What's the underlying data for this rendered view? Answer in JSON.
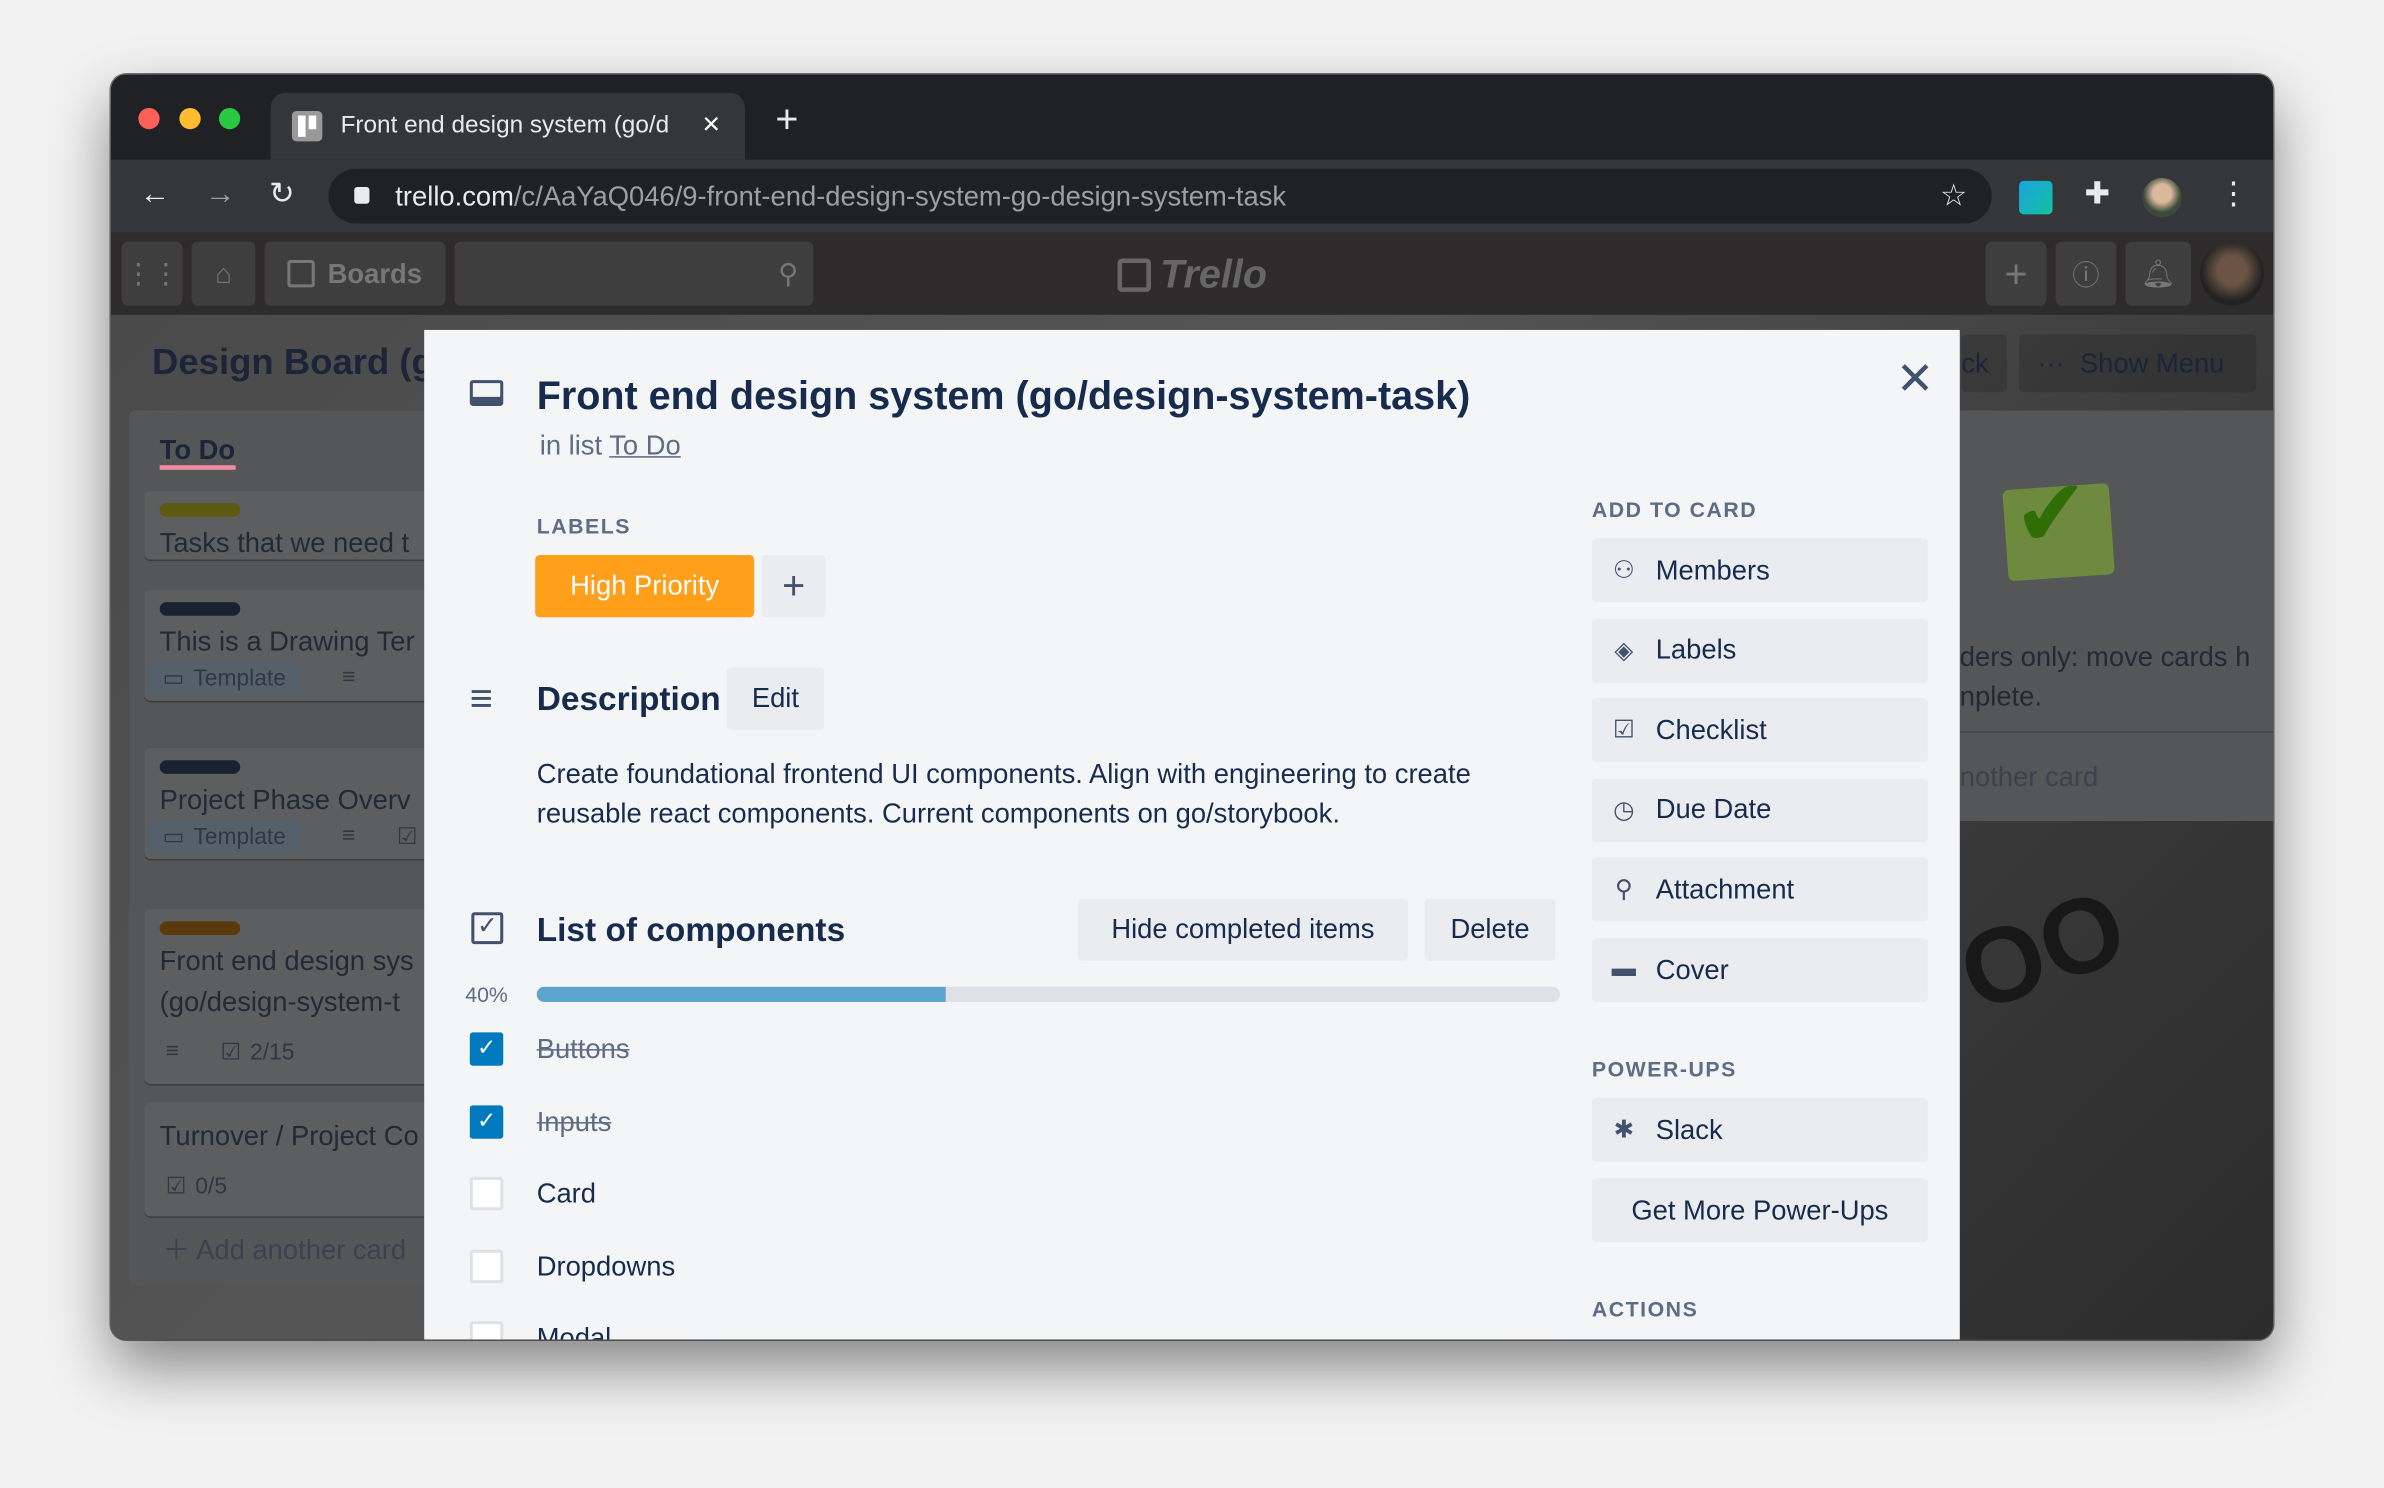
{
  "browser": {
    "tab_title": "Front end design system (go/d",
    "url_domain": "trello.com",
    "url_path": "/c/AaYaQ046/9-front-end-design-system-go-design-system-task",
    "traffic_lights": [
      "#fe5f57",
      "#febc2e",
      "#28c840"
    ]
  },
  "trello_header": {
    "boards_label": "Boards",
    "logo_text": "Trello"
  },
  "board": {
    "title": "Design Board (g",
    "right_button_partial": "ck",
    "show_menu_label": "Show Menu",
    "list": {
      "title": "To Do",
      "cards": [
        {
          "label_color": "#5c5a10",
          "title": "Tasks that we need t"
        },
        {
          "label_color": "#1a2232",
          "title": "This is a Drawing Ter",
          "badge": "Template"
        },
        {
          "label_color": "#1a2232",
          "title": "Project Phase Overv",
          "badge": "Template"
        },
        {
          "label_color": "#5a3a0c",
          "title": "Front end design sys",
          "title2": "(go/design-system-t",
          "checklist": "2/15"
        },
        {
          "title": "Turnover / Project Co",
          "checklist": "0/5"
        }
      ],
      "add_card": "Add another card"
    },
    "right_list": {
      "text1": "ders only: move cards h",
      "text2": "nplete.",
      "add_card": "nother card"
    }
  },
  "modal": {
    "title": "Front end design system (go/design-system-task)",
    "in_list_prefix": "in list",
    "in_list_link": "To Do",
    "labels_heading": "LABELS",
    "label": {
      "text": "High Priority",
      "color": "#ff9f1a"
    },
    "description_heading": "Description",
    "edit_label": "Edit",
    "description_line1": "Create foundational frontend UI components. Align with engineering to create",
    "description_line2": "reusable react components. Current components on go/storybook.",
    "checklist": {
      "title": "List of components",
      "hide_label": "Hide completed items",
      "delete_label": "Delete",
      "progress_text": "40%",
      "progress": 0.4,
      "items": [
        {
          "text": "Buttons",
          "checked": true
        },
        {
          "text": "Inputs",
          "checked": true
        },
        {
          "text": "Card",
          "checked": false
        },
        {
          "text": "Dropdowns",
          "checked": false
        },
        {
          "text": "Modal",
          "checked": false
        }
      ]
    },
    "sidebar": {
      "add_to_card": "ADD TO CARD",
      "buttons": [
        {
          "icon": "person-icon",
          "label": "Members"
        },
        {
          "icon": "tag-icon",
          "label": "Labels"
        },
        {
          "icon": "checklist-icon",
          "label": "Checklist"
        },
        {
          "icon": "clock-icon",
          "label": "Due Date"
        },
        {
          "icon": "paperclip-icon",
          "label": "Attachment"
        },
        {
          "icon": "cover-icon",
          "label": "Cover"
        }
      ],
      "power_ups": "POWER-UPS",
      "slack_label": "Slack",
      "get_more_label": "Get More Power-Ups",
      "actions": "ACTIONS"
    }
  },
  "colors": {
    "accent": "#0079bf",
    "progress": "#5ba4cf",
    "text": "#172b4d"
  }
}
